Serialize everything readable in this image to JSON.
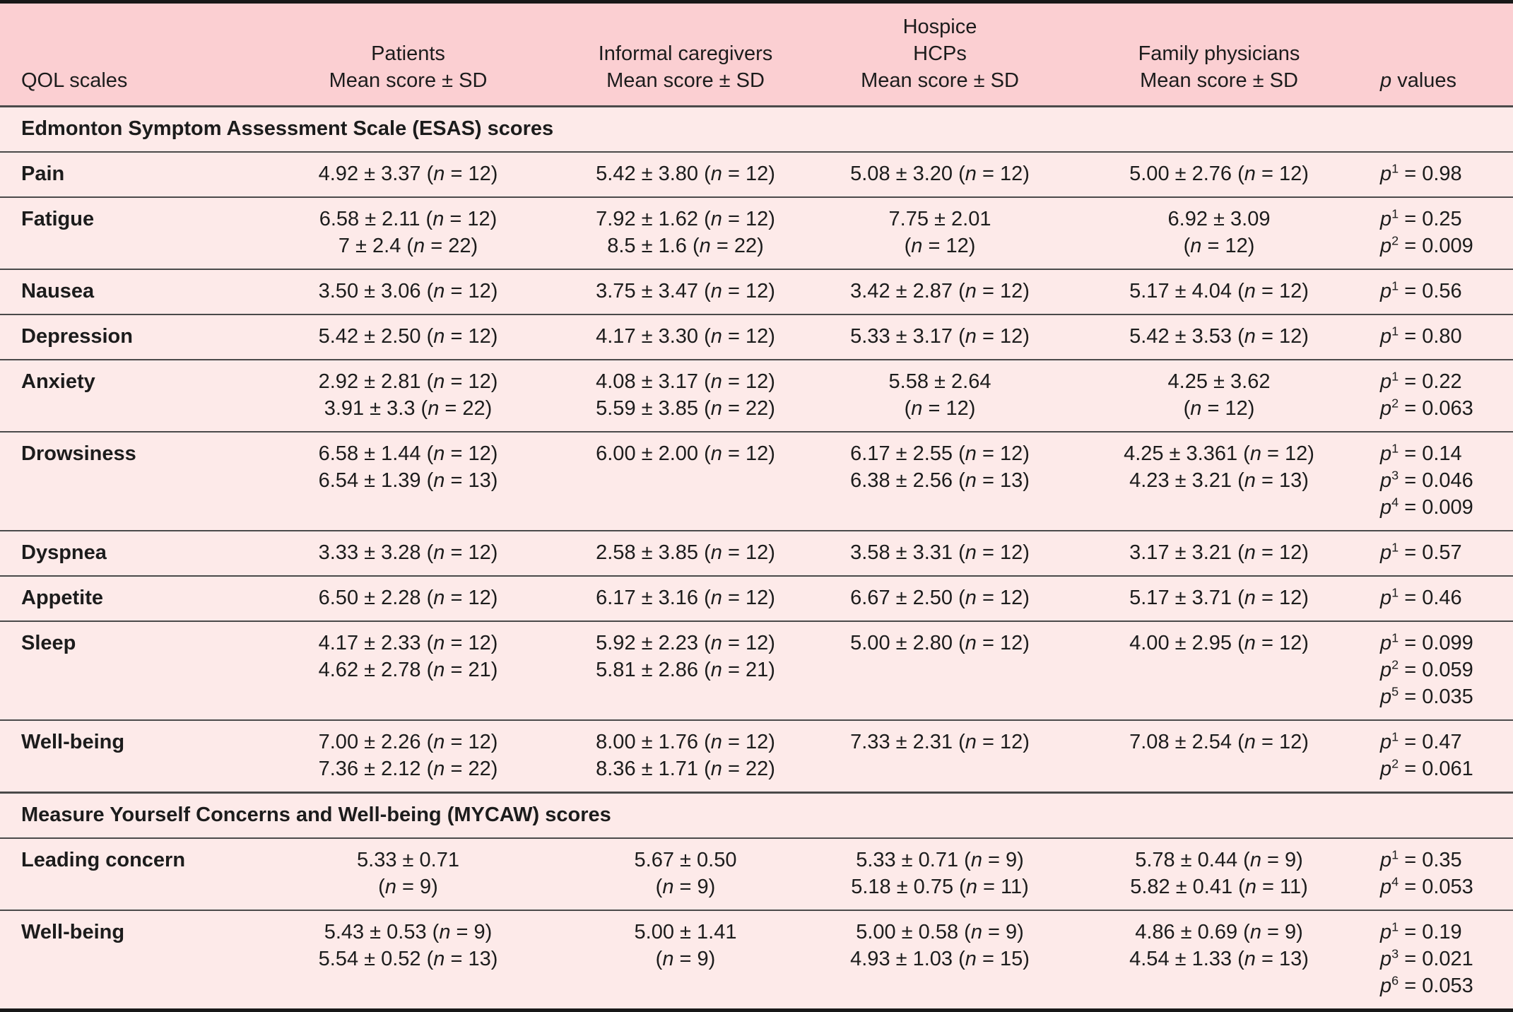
{
  "colors": {
    "header_bg": "#fbcfd2",
    "body_bg": "#fdeae9",
    "border": "#181818",
    "rule": "#4a4a4a",
    "text": "#1c1c1c"
  },
  "table": {
    "header": {
      "label_col": "QOL scales",
      "group_cols": [
        {
          "lines": [
            "Patients",
            "Mean score ± SD"
          ]
        },
        {
          "lines": [
            "Informal caregivers",
            "Mean score ± SD"
          ]
        },
        {
          "lines": [
            "Hospice",
            "HCPs",
            "Mean score ± SD"
          ]
        },
        {
          "lines": [
            "Family physicians",
            "Mean score ± SD"
          ]
        }
      ],
      "p_col": {
        "italic_word": "p",
        "rest": " values"
      }
    },
    "sections": [
      {
        "title": "Edmonton Symptom Assessment Scale (ESAS) scores",
        "rows": [
          {
            "label": "Pain",
            "patients": [
              "4.92 ± 3.37 (n = 12)"
            ],
            "caregivers": [
              "5.42 ± 3.80 (n = 12)"
            ],
            "hospice": [
              "5.08 ± 3.20 (n = 12)"
            ],
            "physicians": [
              "5.00 ± 2.76 (n = 12)"
            ],
            "p": [
              {
                "sup": "1",
                "val": "0.98"
              }
            ]
          },
          {
            "label": "Fatigue",
            "patients": [
              "6.58 ± 2.11 (n = 12)",
              "7 ± 2.4 (n = 22)"
            ],
            "caregivers": [
              "7.92 ± 1.62 (n = 12)",
              "8.5 ± 1.6 (n = 22)"
            ],
            "hospice": [
              "7.75 ± 2.01",
              "(n = 12)"
            ],
            "physicians": [
              "6.92 ± 3.09",
              "(n = 12)"
            ],
            "p": [
              {
                "sup": "1",
                "val": "0.25"
              },
              {
                "sup": "2",
                "val": "0.009"
              }
            ]
          },
          {
            "label": "Nausea",
            "patients": [
              "3.50 ± 3.06 (n = 12)"
            ],
            "caregivers": [
              "3.75 ± 3.47 (n = 12)"
            ],
            "hospice": [
              "3.42 ± 2.87 (n = 12)"
            ],
            "physicians": [
              "5.17 ± 4.04 (n = 12)"
            ],
            "p": [
              {
                "sup": "1",
                "val": "0.56"
              }
            ]
          },
          {
            "label": "Depression",
            "patients": [
              "5.42 ± 2.50 (n = 12)"
            ],
            "caregivers": [
              "4.17 ± 3.30 (n = 12)"
            ],
            "hospice": [
              "5.33 ± 3.17 (n = 12)"
            ],
            "physicians": [
              "5.42 ± 3.53 (n = 12)"
            ],
            "p": [
              {
                "sup": "1",
                "val": "0.80"
              }
            ]
          },
          {
            "label": "Anxiety",
            "patients": [
              "2.92 ± 2.81 (n = 12)",
              "3.91 ± 3.3 (n = 22)"
            ],
            "caregivers": [
              "4.08 ± 3.17 (n = 12)",
              "5.59 ± 3.85 (n = 22)"
            ],
            "hospice": [
              "5.58 ± 2.64",
              "(n = 12)"
            ],
            "physicians": [
              "4.25 ± 3.62",
              "(n = 12)"
            ],
            "p": [
              {
                "sup": "1",
                "val": "0.22"
              },
              {
                "sup": "2",
                "val": "0.063"
              }
            ]
          },
          {
            "label": "Drowsiness",
            "patients": [
              "6.58 ± 1.44 (n = 12)",
              "6.54 ± 1.39 (n = 13)"
            ],
            "caregivers": [
              "6.00 ± 2.00 (n = 12)"
            ],
            "hospice": [
              "6.17 ± 2.55 (n = 12)",
              "6.38 ± 2.56 (n = 13)"
            ],
            "physicians": [
              "4.25 ± 3.361 (n = 12)",
              "4.23 ± 3.21 (n = 13)"
            ],
            "p": [
              {
                "sup": "1",
                "val": "0.14"
              },
              {
                "sup": "3",
                "val": "0.046"
              },
              {
                "sup": "4",
                "val": "0.009"
              }
            ]
          },
          {
            "label": "Dyspnea",
            "patients": [
              "3.33 ± 3.28 (n = 12)"
            ],
            "caregivers": [
              "2.58 ± 3.85 (n = 12)"
            ],
            "hospice": [
              "3.58 ± 3.31 (n = 12)"
            ],
            "physicians": [
              "3.17 ± 3.21 (n = 12)"
            ],
            "p": [
              {
                "sup": "1",
                "val": "0.57"
              }
            ]
          },
          {
            "label": "Appetite",
            "patients": [
              "6.50 ± 2.28 (n = 12)"
            ],
            "caregivers": [
              "6.17 ± 3.16 (n = 12)"
            ],
            "hospice": [
              "6.67 ± 2.50 (n = 12)"
            ],
            "physicians": [
              "5.17 ± 3.71 (n = 12)"
            ],
            "p": [
              {
                "sup": "1",
                "val": "0.46"
              }
            ]
          },
          {
            "label": "Sleep",
            "patients": [
              "4.17 ± 2.33 (n = 12)",
              "4.62 ± 2.78 (n = 21)"
            ],
            "caregivers": [
              "5.92 ± 2.23 (n = 12)",
              "5.81 ± 2.86 (n = 21)"
            ],
            "hospice": [
              "5.00 ± 2.80 (n = 12)"
            ],
            "physicians": [
              "4.00 ± 2.95 (n = 12)"
            ],
            "p": [
              {
                "sup": "1",
                "val": "0.099"
              },
              {
                "sup": "2",
                "val": "0.059"
              },
              {
                "sup": "5",
                "val": "0.035"
              }
            ]
          },
          {
            "label": "Well-being",
            "patients": [
              "7.00 ± 2.26 (n = 12)",
              "7.36 ± 2.12 (n = 22)"
            ],
            "caregivers": [
              "8.00 ± 1.76 (n = 12)",
              "8.36 ± 1.71 (n = 22)"
            ],
            "hospice": [
              "7.33 ± 2.31 (n = 12)"
            ],
            "physicians": [
              "7.08 ± 2.54 (n = 12)"
            ],
            "p": [
              {
                "sup": "1",
                "val": "0.47"
              },
              {
                "sup": "2",
                "val": "0.061"
              }
            ]
          }
        ]
      },
      {
        "title": "Measure Yourself Concerns and Well-being (MYCAW) scores",
        "rows": [
          {
            "label": "Leading concern",
            "patients": [
              "5.33 ± 0.71",
              "(n = 9)"
            ],
            "caregivers": [
              "5.67 ± 0.50",
              "(n = 9)"
            ],
            "hospice": [
              "5.33 ± 0.71 (n = 9)",
              "5.18 ± 0.75 (n = 11)"
            ],
            "physicians": [
              "5.78 ± 0.44 (n = 9)",
              "5.82 ± 0.41 (n = 11)"
            ],
            "p": [
              {
                "sup": "1",
                "val": "0.35"
              },
              {
                "sup": "4",
                "val": "0.053"
              }
            ]
          },
          {
            "label": "Well-being",
            "patients": [
              "5.43 ± 0.53 (n = 9)",
              "5.54 ± 0.52 (n = 13)"
            ],
            "caregivers": [
              "5.00 ± 1.41",
              "(n = 9)"
            ],
            "hospice": [
              "5.00 ± 0.58 (n = 9)",
              "4.93 ± 1.03 (n = 15)"
            ],
            "physicians": [
              "4.86 ± 0.69 (n = 9)",
              "4.54 ± 1.33 (n = 13)"
            ],
            "p": [
              {
                "sup": "1",
                "val": "0.19"
              },
              {
                "sup": "3",
                "val": "0.021"
              },
              {
                "sup": "6",
                "val": "0.053"
              }
            ]
          }
        ]
      }
    ]
  }
}
